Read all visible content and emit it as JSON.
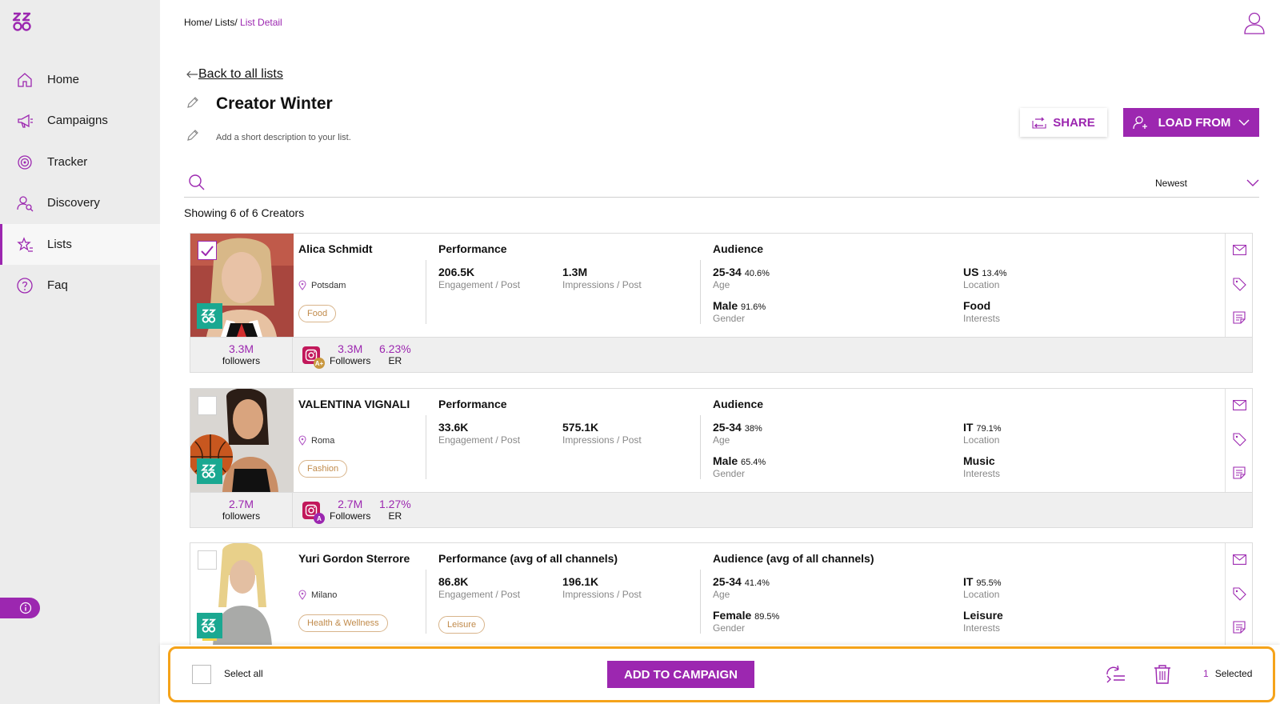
{
  "colors": {
    "accent": "#9c27b0",
    "highlight_border": "#f5a31a",
    "brand_badge": "#1aa891",
    "tag_border": "#d8b48a"
  },
  "sidebar": {
    "logo": "logo-icon",
    "items": [
      {
        "label": "Home",
        "icon": "home-icon"
      },
      {
        "label": "Campaigns",
        "icon": "megaphone-icon"
      },
      {
        "label": "Tracker",
        "icon": "target-icon"
      },
      {
        "label": "Discovery",
        "icon": "user-search-icon"
      },
      {
        "label": "Lists",
        "icon": "star-list-icon",
        "active": true
      },
      {
        "label": "Faq",
        "icon": "question-icon"
      }
    ]
  },
  "header": {
    "breadcrumb": {
      "home": "Home/",
      "lists": " Lists/",
      "current": " List Detail"
    }
  },
  "page": {
    "back_label": "Back to all lists",
    "title": "Creator Winter",
    "description_placeholder": "Add a short description to your list.",
    "share_label": "SHARE",
    "load_label": "LOAD FROM",
    "search_placeholder": "",
    "sort_value": "Newest",
    "showing": "Showing 6 of 6 Creators"
  },
  "creators": [
    {
      "name": "Alica Schmidt",
      "location": "Potsdam",
      "tags": [
        "Food"
      ],
      "checked": true,
      "performance_title": "Performance",
      "engagement": "206.5K",
      "engagement_label": "Engagement / Post",
      "impressions": "1.3M",
      "impressions_label": "Impressions / Post",
      "audience_title": "Audience",
      "age": "25-34",
      "age_pct": "40.6%",
      "age_label": "Age",
      "location_value": "US",
      "location_pct": "13.4%",
      "location_label": "Location",
      "gender": "Male",
      "gender_pct": "91.6%",
      "gender_label": "Gender",
      "interest": "Food",
      "interest_label": "Interests",
      "followers": "3.3M",
      "followers_label": "followers",
      "ig_grade": "A+",
      "ig_followers": "3.3M",
      "ig_followers_label": "Followers",
      "er": "6.23%",
      "er_label": "ER"
    },
    {
      "name": "VALENTINA VIGNALI",
      "location": "Roma",
      "tags": [
        "Fashion"
      ],
      "checked": false,
      "performance_title": "Performance",
      "engagement": "33.6K",
      "engagement_label": "Engagement / Post",
      "impressions": "575.1K",
      "impressions_label": "Impressions / Post",
      "audience_title": "Audience",
      "age": "25-34",
      "age_pct": "38%",
      "age_label": "Age",
      "location_value": "IT",
      "location_pct": "79.1%",
      "location_label": "Location",
      "gender": "Male",
      "gender_pct": "65.4%",
      "gender_label": "Gender",
      "interest": "Music",
      "interest_label": "Interests",
      "followers": "2.7M",
      "followers_label": "followers",
      "ig_grade": "A",
      "ig_followers": "2.7M",
      "ig_followers_label": "Followers",
      "er": "1.27%",
      "er_label": "ER"
    },
    {
      "name": "Yuri Gordon Sterrore",
      "location": "Milano",
      "tags": [
        "Health & Wellness",
        "Leisure"
      ],
      "checked": false,
      "performance_title": "Performance (avg of all channels)",
      "engagement": "86.8K",
      "engagement_label": "Engagement / Post",
      "impressions": "196.1K",
      "impressions_label": "Impressions / Post",
      "audience_title": "Audience (avg of all channels)",
      "age": "25-34",
      "age_pct": "41.4%",
      "age_label": "Age",
      "location_value": "IT",
      "location_pct": "95.5%",
      "location_label": "Location",
      "gender": "Female",
      "gender_pct": "89.5%",
      "gender_label": "Gender",
      "interest": "Leisure",
      "interest_label": "Interests"
    }
  ],
  "action_bar": {
    "select_all_label": "Select all",
    "add_label": "ADD TO CAMPAIGN",
    "selected_count": "1",
    "selected_label": "Selected"
  }
}
